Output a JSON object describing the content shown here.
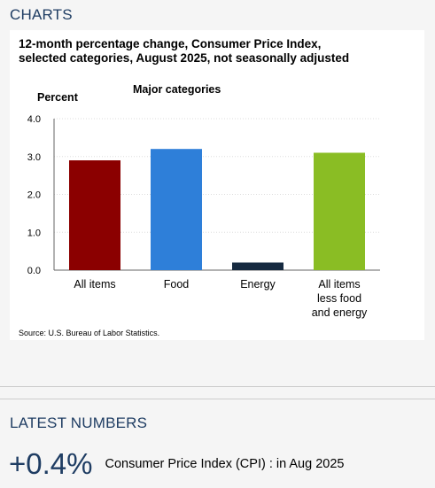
{
  "sections": {
    "charts_heading": "CHARTS",
    "latest_heading": "LATEST NUMBERS"
  },
  "chart_title": {
    "line1": "12-month percentage change, Consumer Price Index,",
    "line2": "selected categories, August 2025, not seasonally adjusted"
  },
  "source": "Source: U.S. Bureau of Labor Statistics.",
  "latest": {
    "value": "+0.4%",
    "label": "Consumer Price Index (CPI)",
    "detail": ": in Aug 2025"
  },
  "chart_data": {
    "type": "bar",
    "title": "12-month percentage change, Consumer Price Index, selected categories, August 2025, not seasonally adjusted",
    "subtitle": "Major categories",
    "ylabel": "Percent",
    "xlabel": "",
    "ylim": [
      0,
      4.0
    ],
    "yticks": [
      "0.0",
      "1.0",
      "2.0",
      "3.0",
      "4.0"
    ],
    "grid": true,
    "categories": [
      [
        "All items"
      ],
      [
        "Food"
      ],
      [
        "Energy"
      ],
      [
        "All items",
        "less food",
        "and energy"
      ]
    ],
    "values": [
      2.9,
      3.2,
      0.2,
      3.1
    ],
    "colors": [
      "#8b0000",
      "#2e7fd9",
      "#162a40",
      "#8abd24"
    ]
  }
}
